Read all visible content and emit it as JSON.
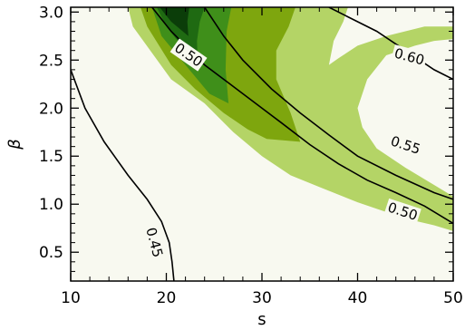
{
  "chart_data": {
    "type": "contour",
    "title": "",
    "xlabel": "s",
    "ylabel": "β",
    "xlim": [
      10,
      50
    ],
    "ylim": [
      0.2,
      3.05
    ],
    "x_ticks": [
      10,
      20,
      30,
      40,
      50
    ],
    "x_tick_labels": [
      "10",
      "20",
      "30",
      "40",
      "50"
    ],
    "y_ticks": [
      0.5,
      1.0,
      1.5,
      2.0,
      2.5,
      3.0
    ],
    "y_tick_labels": [
      "0.5",
      "1.0",
      "1.5",
      "2.0",
      "2.5",
      "3.0"
    ],
    "grid": false,
    "colors": {
      "background": "#f8f9f0",
      "fill_levels": [
        "#b4d466",
        "#7ea60e",
        "#3f8f1a",
        "#1f6a12",
        "#0b3d09"
      ]
    },
    "filled_regions": [
      {
        "level": 1,
        "points": [
          [
            16,
            3.05
          ],
          [
            16.5,
            2.85
          ],
          [
            20.5,
            2.3
          ],
          [
            24,
            2.05
          ],
          [
            27,
            1.75
          ],
          [
            30,
            1.5
          ],
          [
            33,
            1.3
          ],
          [
            36,
            1.18
          ],
          [
            40,
            1.02
          ],
          [
            45,
            0.85
          ],
          [
            48,
            0.78
          ],
          [
            50,
            0.72
          ],
          [
            50,
            1.08
          ],
          [
            48,
            1.2
          ],
          [
            45,
            1.38
          ],
          [
            42,
            1.58
          ],
          [
            40.5,
            1.8
          ],
          [
            40,
            2.0
          ],
          [
            41,
            2.3
          ],
          [
            43,
            2.55
          ],
          [
            46,
            2.65
          ],
          [
            48,
            2.7
          ],
          [
            50,
            2.72
          ],
          [
            50,
            2.85
          ],
          [
            47,
            2.85
          ],
          [
            43,
            2.75
          ],
          [
            40,
            2.65
          ],
          [
            38,
            2.52
          ],
          [
            37,
            2.45
          ],
          [
            37.5,
            2.7
          ],
          [
            38.5,
            2.9
          ],
          [
            39,
            3.05
          ]
        ]
      },
      {
        "level": 2,
        "points": [
          [
            17.3,
            3.05
          ],
          [
            18,
            2.85
          ],
          [
            20.5,
            2.45
          ],
          [
            23,
            2.2
          ],
          [
            26,
            1.95
          ],
          [
            28.5,
            1.78
          ],
          [
            30.5,
            1.68
          ],
          [
            34,
            1.65
          ],
          [
            33,
            1.95
          ],
          [
            31.5,
            2.3
          ],
          [
            31.5,
            2.6
          ],
          [
            32.8,
            2.85
          ],
          [
            33.5,
            3.05
          ]
        ]
      },
      {
        "level": 3,
        "points": [
          [
            18.5,
            3.05
          ],
          [
            19.5,
            2.75
          ],
          [
            22,
            2.45
          ],
          [
            24.5,
            2.15
          ],
          [
            26.5,
            2.05
          ],
          [
            26.2,
            2.4
          ],
          [
            26.3,
            2.8
          ],
          [
            26.8,
            3.05
          ]
        ]
      },
      {
        "level": 4,
        "points": [
          [
            19,
            3.05
          ],
          [
            20,
            2.85
          ],
          [
            22,
            2.6
          ],
          [
            23.3,
            2.45
          ],
          [
            23.2,
            2.7
          ],
          [
            23.5,
            2.9
          ],
          [
            24,
            3.05
          ]
        ]
      },
      {
        "level": 5,
        "points": [
          [
            19.3,
            3.05
          ],
          [
            20.5,
            2.9
          ],
          [
            22.3,
            2.75
          ],
          [
            22.2,
            2.9
          ],
          [
            22.4,
            3.05
          ]
        ]
      }
    ],
    "contour_lines": [
      {
        "level": "0.45",
        "label": "0.45",
        "points": [
          [
            10,
            2.4
          ],
          [
            11.5,
            2.0
          ],
          [
            13.5,
            1.65
          ],
          [
            16,
            1.3
          ],
          [
            18,
            1.05
          ],
          [
            19.5,
            0.82
          ],
          [
            20.3,
            0.6
          ],
          [
            20.6,
            0.4
          ],
          [
            20.8,
            0.2
          ]
        ]
      },
      {
        "level": "0.50",
        "label": "0.50",
        "points": [
          [
            24,
            3.05
          ],
          [
            26,
            2.75
          ],
          [
            28,
            2.5
          ],
          [
            31,
            2.2
          ],
          [
            34,
            1.95
          ],
          [
            37,
            1.72
          ],
          [
            40,
            1.5
          ],
          [
            44,
            1.3
          ],
          [
            48,
            1.12
          ],
          [
            50,
            1.05
          ]
        ]
      },
      {
        "level": "0.55",
        "label": "0.55",
        "points": [
          [
            18.5,
            3.05
          ],
          [
            20.5,
            2.8
          ],
          [
            24,
            2.45
          ],
          [
            28,
            2.15
          ],
          [
            32,
            1.85
          ],
          [
            35,
            1.62
          ],
          [
            38,
            1.42
          ],
          [
            41,
            1.25
          ],
          [
            44,
            1.12
          ],
          [
            47,
            0.98
          ],
          [
            50,
            0.8
          ]
        ]
      },
      {
        "level": "0.60",
        "label": "0.60",
        "points": [
          [
            37,
            3.05
          ],
          [
            39,
            2.95
          ],
          [
            42,
            2.8
          ],
          [
            45,
            2.6
          ],
          [
            48,
            2.4
          ],
          [
            50,
            2.3
          ]
        ]
      }
    ],
    "contour_labels": [
      {
        "text": "0.50",
        "x": 22.3,
        "y": 2.55,
        "angle": 35
      },
      {
        "text": "0.60",
        "x": 45.4,
        "y": 2.53,
        "angle": 15
      },
      {
        "text": "0.55",
        "x": 45.0,
        "y": 1.61,
        "angle": 18
      },
      {
        "text": "0.50",
        "x": 44.7,
        "y": 0.92,
        "angle": 18
      },
      {
        "text": "0.45",
        "x": 18.7,
        "y": 0.6,
        "angle": 75
      }
    ]
  }
}
